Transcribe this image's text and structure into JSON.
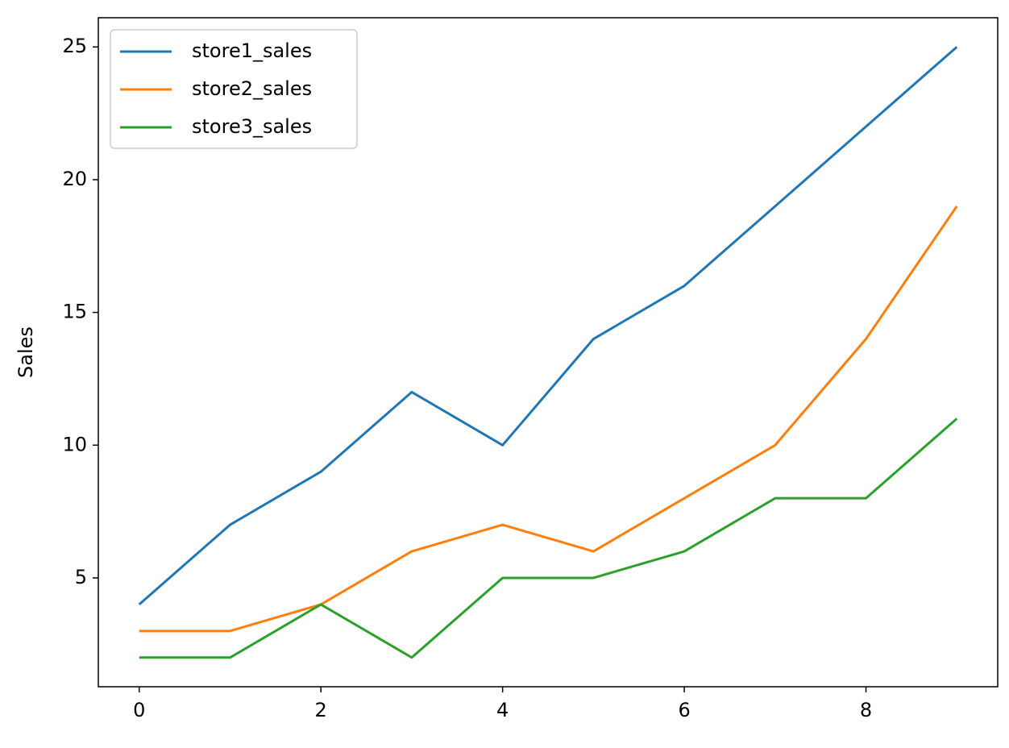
{
  "chart_data": {
    "type": "line",
    "ylabel": "Sales",
    "x": [
      0,
      1,
      2,
      3,
      4,
      5,
      6,
      7,
      8,
      9
    ],
    "series": [
      {
        "name": "store1_sales",
        "color": "#1f77b4",
        "values": [
          4,
          7,
          9,
          12,
          10,
          14,
          16,
          19,
          22,
          25
        ]
      },
      {
        "name": "store2_sales",
        "color": "#ff7f0e",
        "values": [
          3,
          3,
          4,
          6,
          7,
          6,
          8,
          10,
          14,
          19
        ]
      },
      {
        "name": "store3_sales",
        "color": "#2ca02c",
        "values": [
          2,
          2,
          4,
          2,
          5,
          5,
          6,
          8,
          8,
          11
        ]
      }
    ],
    "xlim": [
      -0.45,
      9.45
    ],
    "xticks": [
      0,
      2,
      4,
      6,
      8
    ],
    "ylim": [
      0.9,
      26.1
    ],
    "yticks": [
      5,
      10,
      15,
      20,
      25
    ],
    "legend": "upper left",
    "grid": false
  }
}
